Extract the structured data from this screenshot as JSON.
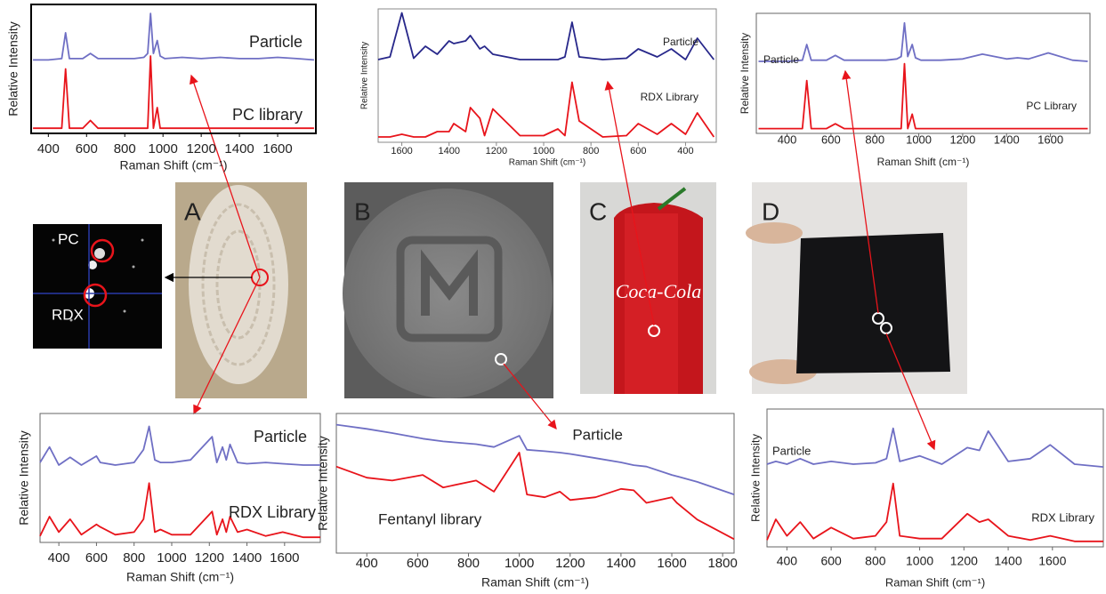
{
  "chart_data": [
    {
      "type": "line",
      "xlabel": "Raman  Shift (cm⁻¹)",
      "ylabel": "Relative  Intensity",
      "xlim": [
        310,
        1800
      ],
      "ylim": [
        0,
        100
      ],
      "xticks": [
        400,
        600,
        800,
        1000,
        1200,
        1400,
        1600
      ],
      "x": [
        320,
        400,
        470,
        490,
        510,
        580,
        620,
        660,
        750,
        850,
        900,
        920,
        935,
        950,
        970,
        985,
        1010,
        1100,
        1200,
        1300,
        1400,
        1500,
        1600,
        1700,
        1790
      ],
      "series": [
        {
          "name": "Particle",
          "color": "#6f6fc4",
          "values": [
            57,
            57,
            58,
            78,
            58,
            58,
            62,
            58,
            58,
            58,
            59,
            62,
            93,
            62,
            72,
            60,
            58,
            59,
            58,
            59,
            58,
            58,
            59,
            58,
            57
          ]
        },
        {
          "name": "PC library",
          "color": "#e8141b",
          "values": [
            4,
            4,
            4,
            50,
            4,
            4,
            10,
            4,
            4,
            4,
            4,
            4,
            60,
            4,
            20,
            4,
            4,
            4,
            4,
            4,
            4,
            4,
            4,
            4,
            4
          ]
        }
      ]
    },
    {
      "type": "line",
      "xlabel": "Raman Shift (cm⁻¹)",
      "ylabel": "Relative Intensity",
      "xlim": [
        1700,
        270
      ],
      "ylim": [
        0,
        100
      ],
      "xticks": [
        1600,
        1400,
        1200,
        1000,
        800,
        600,
        400
      ],
      "x": [
        280,
        350,
        400,
        460,
        520,
        600,
        650,
        750,
        850,
        880,
        910,
        940,
        1000,
        1100,
        1215,
        1250,
        1270,
        1310,
        1330,
        1380,
        1400,
        1450,
        1500,
        1550,
        1600,
        1650,
        1700
      ],
      "series": [
        {
          "name": "Particle",
          "color": "#27278a",
          "values": [
            62,
            78,
            62,
            70,
            64,
            70,
            63,
            62,
            64,
            90,
            64,
            62,
            62,
            62,
            66,
            72,
            70,
            80,
            76,
            74,
            76,
            66,
            72,
            63,
            97,
            64,
            62
          ]
        },
        {
          "name": "RDX Library",
          "color": "#e8141b",
          "values": [
            4,
            22,
            6,
            14,
            6,
            14,
            5,
            4,
            16,
            45,
            5,
            10,
            5,
            5,
            25,
            5,
            18,
            26,
            8,
            14,
            8,
            8,
            4,
            4,
            6,
            4,
            4
          ]
        }
      ]
    },
    {
      "type": "line",
      "xlabel": "Raman Shift (cm⁻¹)",
      "ylabel": "Relative Intensity",
      "xlim": [
        260,
        1780
      ],
      "ylim": [
        0,
        100
      ],
      "xticks": [
        400,
        600,
        800,
        1000,
        1200,
        1400,
        1600
      ],
      "x": [
        270,
        400,
        470,
        490,
        510,
        580,
        620,
        660,
        750,
        850,
        900,
        920,
        935,
        950,
        970,
        985,
        1010,
        1100,
        1200,
        1290,
        1400,
        1450,
        1500,
        1590,
        1700,
        1770
      ],
      "series": [
        {
          "name": "Particle",
          "color": "#6f6fc4",
          "values": [
            60,
            60,
            61,
            74,
            61,
            61,
            65,
            61,
            61,
            61,
            62,
            64,
            92,
            64,
            74,
            63,
            61,
            61,
            62,
            66,
            62,
            63,
            62,
            67,
            61,
            60
          ]
        },
        {
          "name": "PC Library",
          "color": "#e8141b",
          "values": [
            4,
            4,
            4,
            44,
            4,
            4,
            8,
            4,
            4,
            4,
            4,
            4,
            58,
            4,
            16,
            4,
            4,
            4,
            4,
            4,
            4,
            4,
            4,
            4,
            4,
            4
          ]
        }
      ]
    },
    {
      "type": "line",
      "xlabel": "Raman  Shift (cm⁻¹)",
      "ylabel": "Relative  Intensity",
      "xlim": [
        300,
        1790
      ],
      "ylim": [
        0,
        100
      ],
      "xticks": [
        400,
        600,
        800,
        1000,
        1200,
        1400,
        1600
      ],
      "x": [
        300,
        350,
        400,
        460,
        520,
        600,
        620,
        700,
        800,
        850,
        880,
        910,
        940,
        1000,
        1100,
        1215,
        1240,
        1270,
        1290,
        1310,
        1350,
        1400,
        1500,
        1590,
        1700,
        1790
      ],
      "series": [
        {
          "name": "Particle",
          "color": "#6f6fc4",
          "values": [
            62,
            74,
            60,
            66,
            60,
            67,
            62,
            60,
            62,
            72,
            90,
            64,
            62,
            62,
            64,
            82,
            62,
            74,
            64,
            76,
            62,
            61,
            62,
            61,
            60,
            60
          ]
        },
        {
          "name": "RDX Library",
          "color": "#e8141b",
          "values": [
            5,
            20,
            8,
            18,
            6,
            14,
            12,
            6,
            8,
            18,
            46,
            8,
            10,
            6,
            6,
            24,
            6,
            18,
            8,
            20,
            8,
            10,
            5,
            8,
            4,
            4
          ]
        }
      ]
    },
    {
      "type": "line",
      "xlabel": "Raman Shift (cm⁻¹)",
      "ylabel": "Relative Intensity",
      "xlim": [
        280,
        1845
      ],
      "ylim": [
        0,
        100
      ],
      "xticks": [
        400,
        600,
        800,
        1000,
        1200,
        1400,
        1600,
        1800
      ],
      "x": [
        280,
        400,
        500,
        620,
        700,
        830,
        900,
        1000,
        1030,
        1100,
        1160,
        1200,
        1300,
        1400,
        1450,
        1500,
        1600,
        1620,
        1700,
        1845
      ],
      "series": [
        {
          "name": "Particle",
          "color": "#6f6fc4",
          "values": [
            92,
            89,
            86,
            82,
            80,
            78,
            76,
            84,
            74,
            73,
            72,
            71,
            68,
            65,
            63,
            62,
            56,
            55,
            51,
            42
          ]
        },
        {
          "name": "Fentanyl library",
          "color": "#e8141b",
          "values": [
            62,
            54,
            52,
            56,
            47,
            52,
            44,
            72,
            42,
            40,
            44,
            38,
            40,
            46,
            45,
            36,
            40,
            36,
            24,
            10
          ]
        }
      ]
    },
    {
      "type": "line",
      "xlabel": "Raman Shift (cm⁻¹)",
      "ylabel": "Relative Intensity",
      "xlim": [
        310,
        1830
      ],
      "ylim": [
        0,
        100
      ],
      "xticks": [
        400,
        600,
        800,
        1000,
        1200,
        1400,
        1600
      ],
      "x": [
        310,
        350,
        400,
        460,
        520,
        600,
        700,
        800,
        850,
        880,
        910,
        1000,
        1100,
        1215,
        1270,
        1310,
        1400,
        1500,
        1590,
        1700,
        1830
      ],
      "series": [
        {
          "name": "Particle",
          "color": "#6f6fc4",
          "values": [
            60,
            62,
            60,
            64,
            60,
            62,
            60,
            61,
            64,
            86,
            62,
            66,
            60,
            72,
            70,
            84,
            62,
            64,
            74,
            60,
            58
          ]
        },
        {
          "name": "RDX Library",
          "color": "#e8141b",
          "values": [
            5,
            20,
            8,
            18,
            6,
            14,
            6,
            8,
            18,
            46,
            8,
            6,
            6,
            24,
            18,
            20,
            8,
            5,
            8,
            4,
            4
          ]
        }
      ]
    }
  ],
  "figure": {
    "panel_labels": [
      "A",
      "B",
      "C",
      "D"
    ],
    "inset_labels": [
      "PC",
      "RDX"
    ],
    "can_text": "Coca-Cola"
  }
}
